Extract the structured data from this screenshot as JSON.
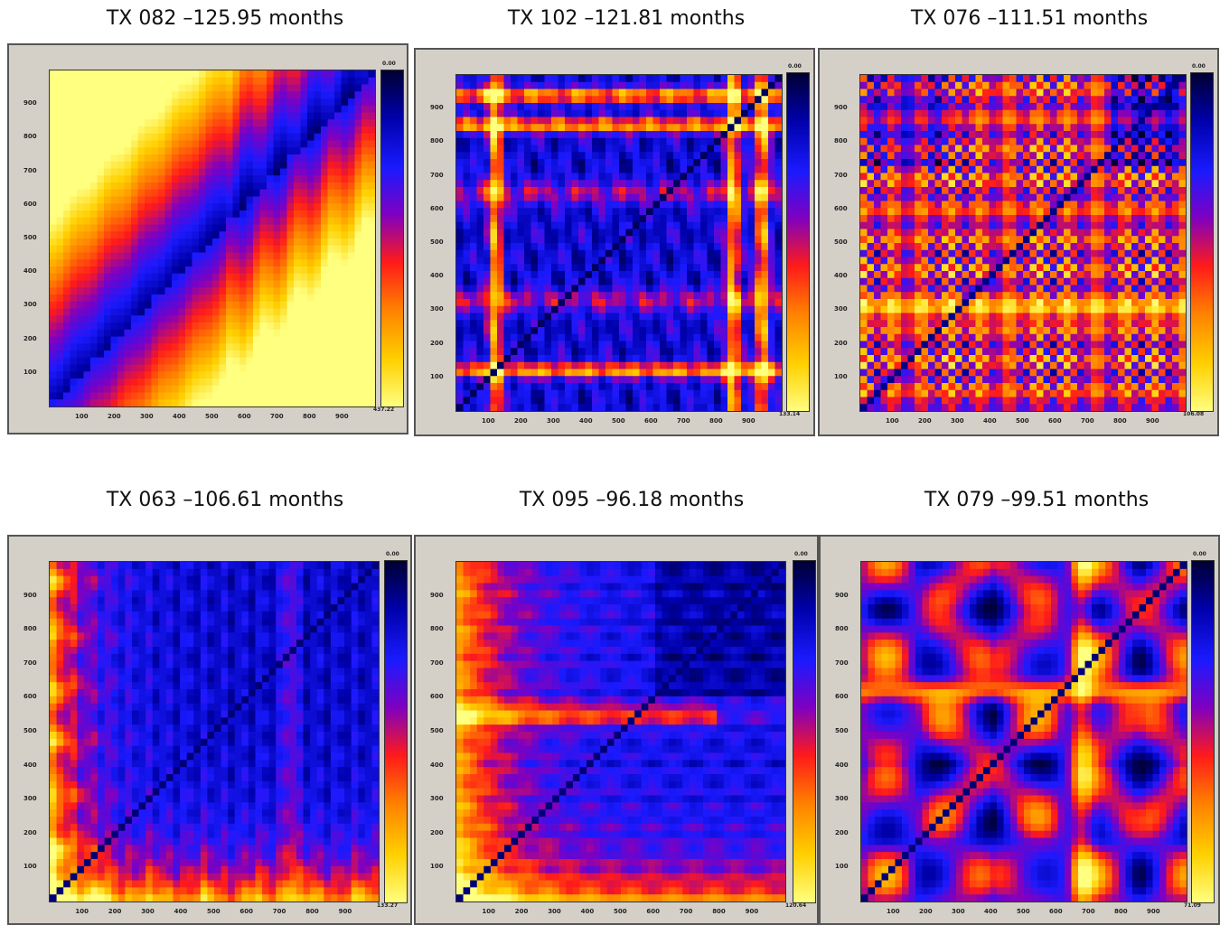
{
  "chart_data": [
    {
      "type": "heatmap",
      "title": "TX 082 –125.95 months",
      "x_ticks": [
        "100",
        "200",
        "300",
        "400",
        "500",
        "600",
        "700",
        "800",
        "900"
      ],
      "y_ticks": [
        "100",
        "200",
        "300",
        "400",
        "500",
        "600",
        "700",
        "800",
        "900"
      ],
      "xlim": [
        0,
        1000
      ],
      "ylim": [
        0,
        1000
      ],
      "colorbar": {
        "max": "0.00",
        "min": "437.22"
      },
      "pattern": "diagonal-gradient"
    },
    {
      "type": "heatmap",
      "title": "TX 102 –121.81 months",
      "x_ticks": [
        "100",
        "200",
        "300",
        "400",
        "500",
        "600",
        "700",
        "800",
        "900"
      ],
      "y_ticks": [
        "100",
        "200",
        "300",
        "400",
        "500",
        "600",
        "700",
        "800",
        "900"
      ],
      "xlim": [
        0,
        1000
      ],
      "ylim": [
        0,
        1000
      ],
      "colorbar": {
        "max": "0.00",
        "min": "133.14"
      },
      "pattern": "blue-grid-orange-bands"
    },
    {
      "type": "heatmap",
      "title": "TX 076 –111.51 months",
      "x_ticks": [
        "100",
        "200",
        "300",
        "400",
        "500",
        "600",
        "700",
        "800",
        "900"
      ],
      "y_ticks": [
        "100",
        "200",
        "300",
        "400",
        "500",
        "600",
        "700",
        "800",
        "900"
      ],
      "xlim": [
        0,
        1000
      ],
      "ylim": [
        0,
        1000
      ],
      "colorbar": {
        "max": "0.00",
        "min": "106.08"
      },
      "pattern": "dense-red-grid"
    },
    {
      "type": "heatmap",
      "title": "TX 063 –106.61 months",
      "x_ticks": [
        "100",
        "200",
        "300",
        "400",
        "500",
        "600",
        "700",
        "800",
        "900"
      ],
      "y_ticks": [
        "100",
        "200",
        "300",
        "400",
        "500",
        "600",
        "700",
        "800",
        "900"
      ],
      "xlim": [
        0,
        1000
      ],
      "ylim": [
        0,
        1000
      ],
      "colorbar": {
        "max": "0.00",
        "min": "133.27"
      },
      "pattern": "blue-with-warm-edges"
    },
    {
      "type": "heatmap",
      "title": "TX 095 –96.18 months",
      "x_ticks": [
        "100",
        "200",
        "300",
        "400",
        "500",
        "600",
        "700",
        "800",
        "900"
      ],
      "y_ticks": [
        "100",
        "200",
        "300",
        "400",
        "500",
        "600",
        "700",
        "800",
        "900"
      ],
      "xlim": [
        0,
        1000
      ],
      "ylim": [
        0,
        1000
      ],
      "colorbar": {
        "max": "0.00",
        "min": "120.64"
      },
      "pattern": "blue-with-warm-border"
    },
    {
      "type": "heatmap",
      "title": "TX 079 –99.51 months",
      "x_ticks": [
        "100",
        "200",
        "300",
        "400",
        "500",
        "600",
        "700",
        "800",
        "900"
      ],
      "y_ticks": [
        "100",
        "200",
        "300",
        "400",
        "500",
        "600",
        "700",
        "800",
        "900"
      ],
      "xlim": [
        0,
        1000
      ],
      "ylim": [
        0,
        1000
      ],
      "colorbar": {
        "max": "0.00",
        "min": "71.09"
      },
      "pattern": "blocky-checker"
    }
  ],
  "colormap": [
    "#000033",
    "#0000aa",
    "#1a1aff",
    "#8000c0",
    "#ff1a1a",
    "#ff8000",
    "#ffd000",
    "#ffff80"
  ]
}
